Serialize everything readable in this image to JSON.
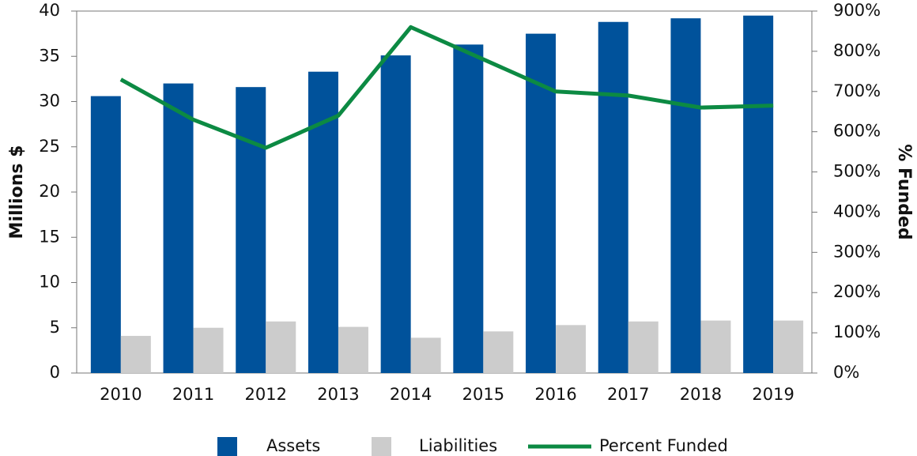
{
  "chart_data": {
    "type": "bar",
    "categories": [
      "2010",
      "2011",
      "2012",
      "2013",
      "2014",
      "2015",
      "2016",
      "2017",
      "2018",
      "2019"
    ],
    "series": [
      {
        "name": "Assets",
        "type": "bar",
        "color": "#00529b",
        "values": [
          30.6,
          32.0,
          31.6,
          33.3,
          35.1,
          36.3,
          37.5,
          38.8,
          39.2,
          39.5
        ]
      },
      {
        "name": "Liabilities",
        "type": "bar",
        "color": "#cccccc",
        "values": [
          4.1,
          5.0,
          5.7,
          5.1,
          3.9,
          4.6,
          5.3,
          5.7,
          5.8,
          5.8
        ]
      },
      {
        "name": "Percent Funded",
        "type": "line",
        "axis": "y2",
        "color": "#0c8a43",
        "values": [
          730,
          630,
          560,
          640,
          860,
          780,
          700,
          690,
          660,
          665
        ]
      }
    ],
    "ylabel": "Millions $",
    "y2label": "% Funded",
    "ylim": [
      0,
      40
    ],
    "yticks": [
      0,
      5,
      10,
      15,
      20,
      25,
      30,
      35,
      40
    ],
    "y2lim": [
      0,
      900
    ],
    "y2ticks": [
      {
        "value": 0,
        "label": "0%"
      },
      {
        "value": 100,
        "label": "100%"
      },
      {
        "value": 200,
        "label": "200%"
      },
      {
        "value": 300,
        "label": "300%"
      },
      {
        "value": 400,
        "label": "400%"
      },
      {
        "value": 500,
        "label": "500%"
      },
      {
        "value": 600,
        "label": "600%"
      },
      {
        "value": 700,
        "label": "700%"
      },
      {
        "value": 800,
        "label": "800%"
      },
      {
        "value": 900,
        "label": "900%"
      }
    ],
    "grid": false,
    "legend": "bottom"
  }
}
